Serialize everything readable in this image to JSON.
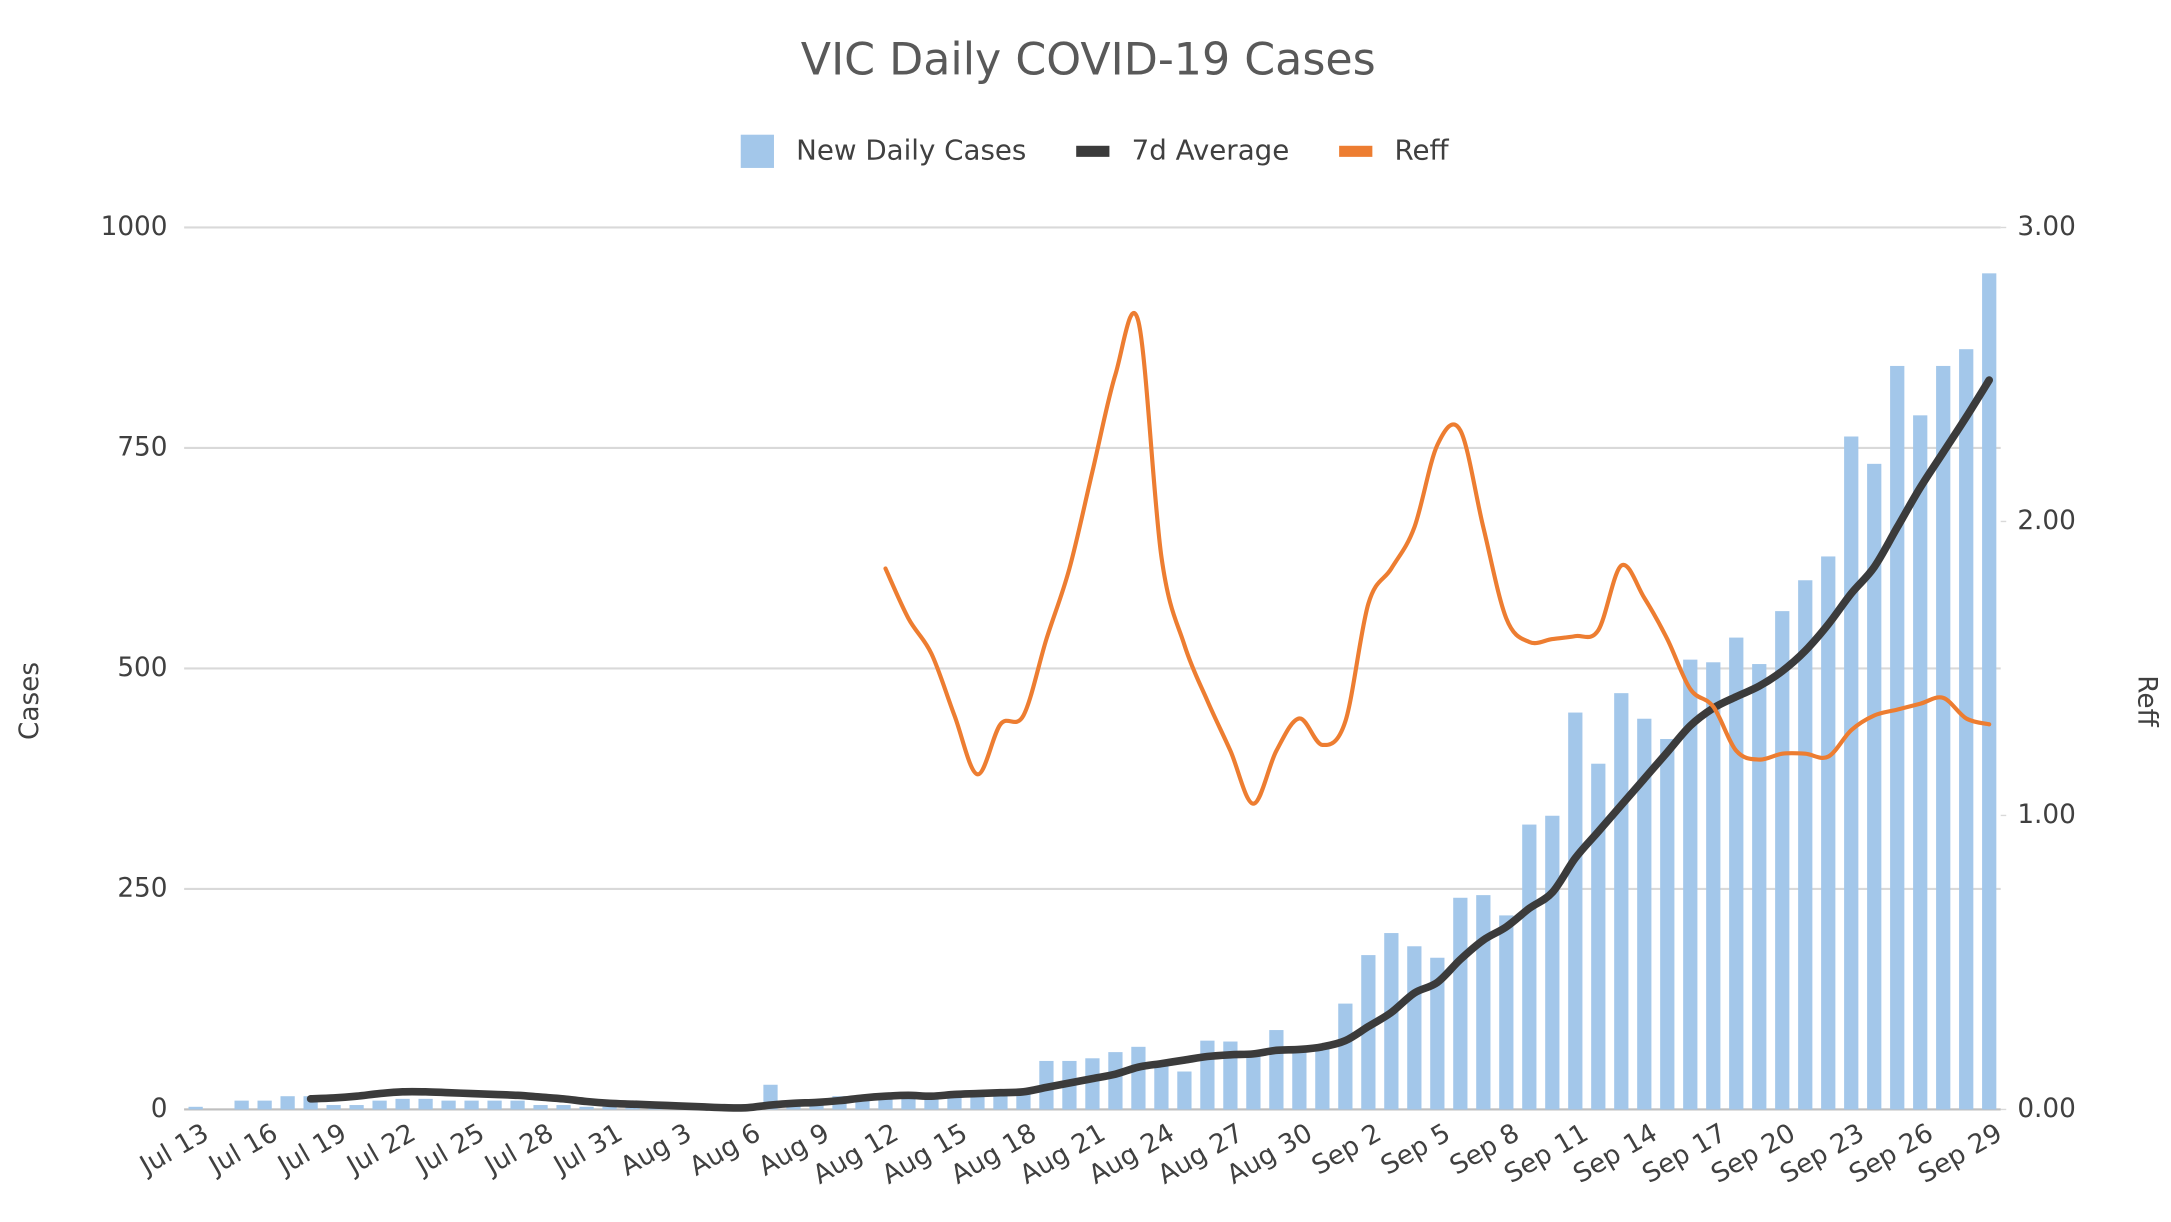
{
  "chart_data": {
    "type": "bar",
    "title": "VIC Daily COVID-19 Cases",
    "ylabel": "Cases",
    "y2label": "Reff",
    "categories": [
      "Jul 13",
      null,
      null,
      "Jul 16",
      null,
      null,
      "Jul 19",
      null,
      null,
      "Jul 22",
      null,
      null,
      "Jul 25",
      null,
      null,
      "Jul 28",
      null,
      null,
      "Jul 31",
      null,
      null,
      "Aug 3",
      null,
      null,
      "Aug 6",
      null,
      null,
      "Aug 9",
      null,
      null,
      "Aug 12",
      null,
      null,
      "Aug 15",
      null,
      null,
      "Aug 18",
      null,
      null,
      "Aug 21",
      null,
      null,
      "Aug 24",
      null,
      null,
      "Aug 27",
      null,
      null,
      "Aug 30",
      null,
      null,
      "Sep 2",
      null,
      null,
      "Sep 5",
      null,
      null,
      "Sep 8",
      null,
      null,
      "Sep 11",
      null,
      null,
      "Sep 14",
      null,
      null,
      "Sep 17",
      null,
      null,
      "Sep 20",
      null,
      null,
      "Sep 23",
      null,
      null,
      "Sep 26",
      null,
      null,
      "Sep 29"
    ],
    "series": [
      {
        "name": "New Daily Cases",
        "type": "bar",
        "color": "#a3c7ea",
        "values": [
          3,
          0,
          10,
          10,
          15,
          15,
          5,
          5,
          10,
          12,
          12,
          10,
          10,
          10,
          10,
          5,
          5,
          3,
          3,
          2,
          2,
          1,
          1,
          2,
          1,
          28,
          5,
          10,
          15,
          15,
          15,
          15,
          15,
          20,
          20,
          20,
          20,
          55,
          55,
          58,
          65,
          71,
          50,
          43,
          78,
          77,
          65,
          90,
          65,
          70,
          120,
          175,
          200,
          185,
          172,
          240,
          243,
          220,
          323,
          333,
          450,
          392,
          472,
          443,
          420,
          510,
          507,
          535,
          505,
          565,
          600,
          627,
          763,
          732,
          843,
          787,
          843,
          862,
          948
        ]
      },
      {
        "name": "7d Average",
        "type": "line",
        "color": "#3b3b3b",
        "values": [
          null,
          null,
          null,
          null,
          null,
          12,
          13,
          15,
          18,
          20,
          20,
          19,
          18,
          17,
          16,
          14,
          12,
          9,
          7,
          6,
          5,
          4,
          3,
          2,
          2,
          5,
          7,
          8,
          10,
          13,
          15,
          16,
          15,
          17,
          18,
          19,
          20,
          25,
          30,
          35,
          40,
          48,
          52,
          56,
          60,
          62,
          63,
          67,
          68,
          71,
          78,
          94,
          110,
          132,
          144,
          170,
          192,
          207,
          228,
          246,
          285,
          315,
          345,
          375,
          405,
          435,
          455,
          468,
          480,
          497,
          520,
          550,
          585,
          615,
          660,
          705,
          745,
          785,
          827
        ]
      },
      {
        "name": "Reff",
        "type": "line",
        "axis": "y2",
        "color": "#ed7d31",
        "values": [
          null,
          null,
          null,
          null,
          null,
          null,
          null,
          null,
          null,
          null,
          null,
          null,
          null,
          null,
          null,
          null,
          null,
          null,
          null,
          null,
          null,
          null,
          null,
          null,
          null,
          null,
          null,
          null,
          null,
          null,
          1.84,
          1.67,
          1.55,
          1.34,
          1.14,
          1.31,
          1.34,
          1.6,
          1.84,
          2.17,
          2.5,
          2.68,
          1.88,
          1.58,
          1.39,
          1.22,
          1.04,
          1.22,
          1.33,
          1.24,
          1.32,
          1.72,
          1.84,
          1.98,
          2.26,
          2.31,
          1.98,
          1.67,
          1.59,
          1.6,
          1.61,
          1.63,
          1.85,
          1.74,
          1.6,
          1.43,
          1.37,
          1.22,
          1.19,
          1.21,
          1.21,
          1.2,
          1.29,
          1.34,
          1.36,
          1.38,
          1.4,
          1.33,
          1.31
        ]
      }
    ],
    "ylim": [
      0,
      1000
    ],
    "yticks": [
      0,
      250,
      500,
      750,
      1000
    ],
    "y2lim": [
      0,
      3
    ],
    "y2ticks": [
      {
        "value": 0,
        "label": "0.00"
      },
      {
        "value": 1,
        "label": "1.00"
      },
      {
        "value": 2,
        "label": "2.00"
      },
      {
        "value": 3,
        "label": "3.00"
      }
    ],
    "grid": true,
    "legend": "top"
  }
}
